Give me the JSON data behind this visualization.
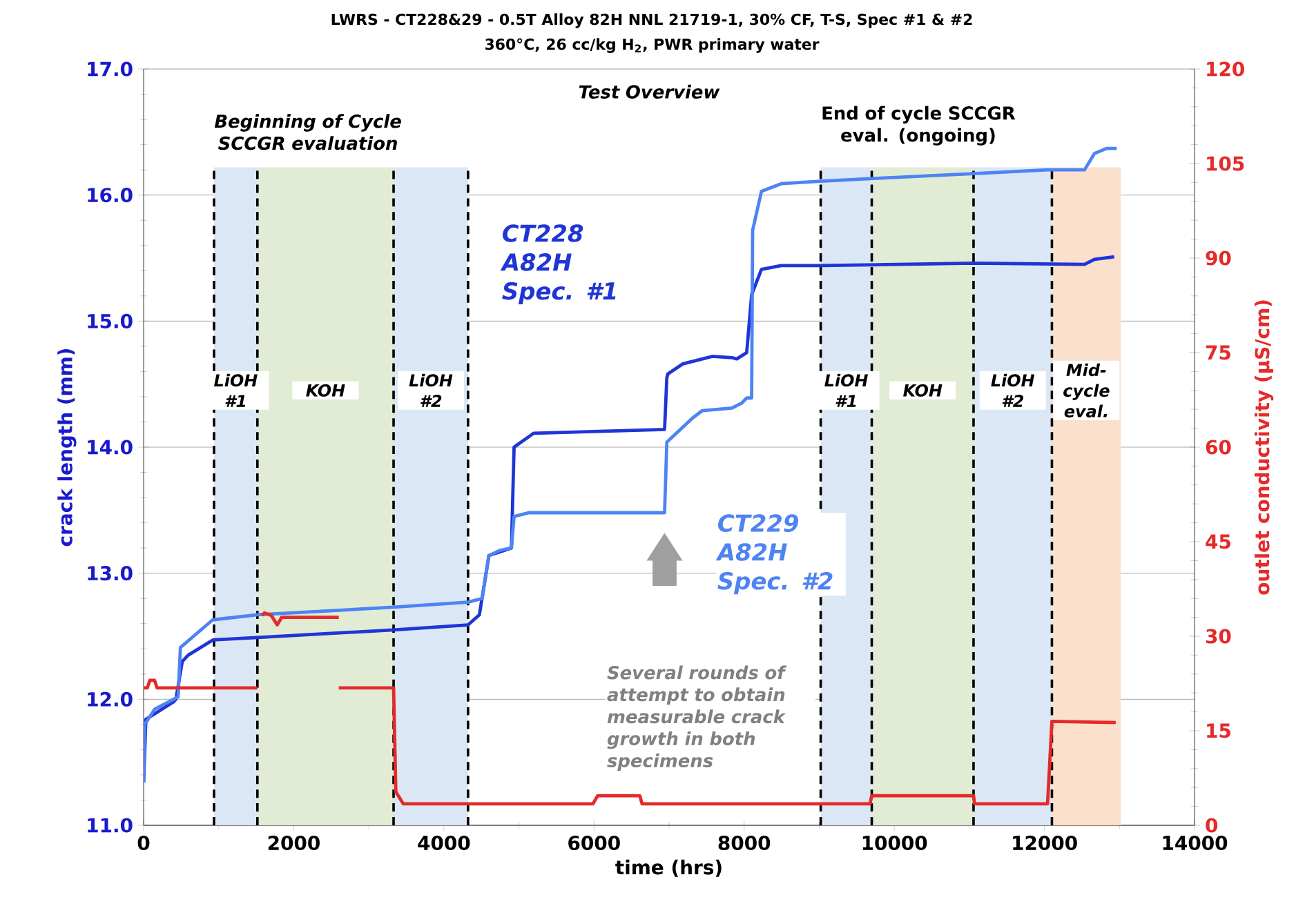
{
  "chart_data": {
    "type": "line",
    "title": "LWRS - CT228&29 - 0.5T Alloy 82H NNL 21719-1, 30% CF, T-S, Spec #1 & #2",
    "subtitle": "360°C, 26 cc/kg H$_{2}$, PWR primary water",
    "xlabel": "time (hrs)",
    "ylabel": "crack length (mm)",
    "y2label": "outlet conductivity (µS/cm)",
    "xlim": [
      0,
      14000
    ],
    "xticks": [
      0,
      2000,
      4000,
      6000,
      8000,
      10000,
      12000,
      14000
    ],
    "ylim": [
      11,
      17
    ],
    "yticks": [
      {
        "value": 11,
        "label": "11.0"
      },
      {
        "value": 12,
        "label": "12.0"
      },
      {
        "value": 13,
        "label": "13.0"
      },
      {
        "value": 14,
        "label": "14.0"
      },
      {
        "value": 15,
        "label": "15.0"
      },
      {
        "value": 16,
        "label": "16.0"
      },
      {
        "value": 17,
        "label": "17.0"
      }
    ],
    "y2lim": [
      0,
      120
    ],
    "y2ticks": [
      0,
      15,
      30,
      45,
      60,
      75,
      90,
      105,
      120
    ],
    "grid": "y",
    "line_style": "solid",
    "marker": "none",
    "series": [
      {
        "name": "CT228 A82H Spec. #1",
        "color": "#1f35d6",
        "x": [
          0,
          30,
          400,
          430,
          515,
          594,
          922,
          1516,
          3330,
          4322,
          4473,
          4600,
          4900,
          4935,
          5195,
          6940,
          6970,
          6983,
          7180,
          7574,
          7837,
          7902,
          8034,
          8100,
          8231,
          8494,
          9020,
          11056,
          12535,
          12667,
          12930
        ],
        "values": [
          11.34,
          11.84,
          11.98,
          12.0,
          12.3,
          12.35,
          12.47,
          12.49,
          12.55,
          12.59,
          12.67,
          13.14,
          13.2,
          14.0,
          14.11,
          14.14,
          14.55,
          14.58,
          14.66,
          14.72,
          14.71,
          14.7,
          14.75,
          15.21,
          15.41,
          15.44,
          15.44,
          15.46,
          15.45,
          15.49,
          15.51
        ]
      },
      {
        "name": "CT229 A82H Spec. #2",
        "color": "#4d83f3",
        "x": [
          0,
          15,
          146,
          400,
          460,
          490,
          920,
          1516,
          3330,
          4322,
          4510,
          4600,
          4740,
          4900,
          4935,
          5130,
          6940,
          6970,
          7311,
          7443,
          7837,
          7968,
          8034,
          8100,
          8113,
          8231,
          8494,
          9020,
          9676,
          11056,
          12042,
          12535,
          12667,
          12831,
          12963
        ],
        "values": [
          11.34,
          11.8,
          11.92,
          12.0,
          12.02,
          12.41,
          12.63,
          12.67,
          12.73,
          12.77,
          12.8,
          13.14,
          13.18,
          13.2,
          13.45,
          13.48,
          13.48,
          14.04,
          14.23,
          14.29,
          14.31,
          14.35,
          14.39,
          14.39,
          15.72,
          16.03,
          16.09,
          16.11,
          16.13,
          16.17,
          16.2,
          16.2,
          16.33,
          16.37,
          16.37
        ]
      },
      {
        "color": "#e52a2a",
        "axis": "y2",
        "x": [
          0,
          50,
          82,
          146,
          180,
          920,
          1516
        ],
        "values": [
          21.8,
          21.8,
          23.0,
          23.0,
          21.8,
          21.8,
          21.8
        ]
      },
      {
        "color": "#e52a2a",
        "axis": "y2",
        "x": [
          1580,
          1610,
          1700,
          1780,
          1840,
          2600
        ],
        "values": [
          33.3,
          33.7,
          33.3,
          31.8,
          33.0,
          33.0
        ]
      },
      {
        "color": "#e52a2a",
        "axis": "y2",
        "x": [
          2600,
          3330,
          3360,
          3460,
          4322,
          5985,
          6050,
          6610,
          6640,
          9020,
          9676,
          9700,
          11056,
          11070,
          12042,
          12100,
          12950
        ],
        "values": [
          21.8,
          21.8,
          5.3,
          3.4,
          3.4,
          3.4,
          4.7,
          4.7,
          3.4,
          3.4,
          3.4,
          4.7,
          4.7,
          3.4,
          3.4,
          16.5,
          16.3
        ]
      }
    ],
    "bands": [
      {
        "axis": "x",
        "from": 938,
        "to": 1516,
        "label": "LiOH #1",
        "color": "#dbe7f4"
      },
      {
        "axis": "x",
        "from": 1516,
        "to": 3330,
        "label": "KOH",
        "color": "#e2ecd4"
      },
      {
        "axis": "x",
        "from": 3330,
        "to": 4322,
        "label": "LiOH #2",
        "color": "#dbe7f4"
      },
      {
        "axis": "x",
        "from": 9020,
        "to": 9700,
        "label": "LiOH #1",
        "color": "#dbe7f4"
      },
      {
        "axis": "x",
        "from": 9700,
        "to": 11056,
        "label": "KOH",
        "color": "#e2ecd4"
      },
      {
        "axis": "x",
        "from": 11056,
        "to": 12100,
        "label": "LiOH #2",
        "color": "#dbe7f4"
      },
      {
        "axis": "x",
        "from": 12100,
        "to": 13019,
        "label": "Mid-cycle eval.",
        "color": "#fbe0cc"
      }
    ],
    "ref_lines": [
      {
        "axis": "x",
        "value": 938,
        "color": "#000000",
        "line_style": "dashed"
      },
      {
        "axis": "x",
        "value": 1516,
        "color": "#000000",
        "line_style": "dashed"
      },
      {
        "axis": "x",
        "value": 3330,
        "color": "#000000",
        "line_style": "dashed"
      },
      {
        "axis": "x",
        "value": 4322,
        "color": "#000000",
        "line_style": "dashed"
      },
      {
        "axis": "x",
        "value": 9020,
        "color": "#000000",
        "line_style": "dashed"
      },
      {
        "axis": "x",
        "value": 9700,
        "color": "#000000",
        "line_style": "dashed"
      },
      {
        "axis": "x",
        "value": 11056,
        "color": "#000000",
        "line_style": "dashed"
      },
      {
        "axis": "x",
        "value": 12100,
        "color": "#000000",
        "line_style": "dashed"
      }
    ],
    "annotations": [
      "Test Overview",
      "Beginning of Cycle SCCGR evaluation",
      "End of cycle SCCGR eval. (ongoing)",
      "Several rounds of attempt to obtain measurable crack growth in both specimens"
    ]
  }
}
